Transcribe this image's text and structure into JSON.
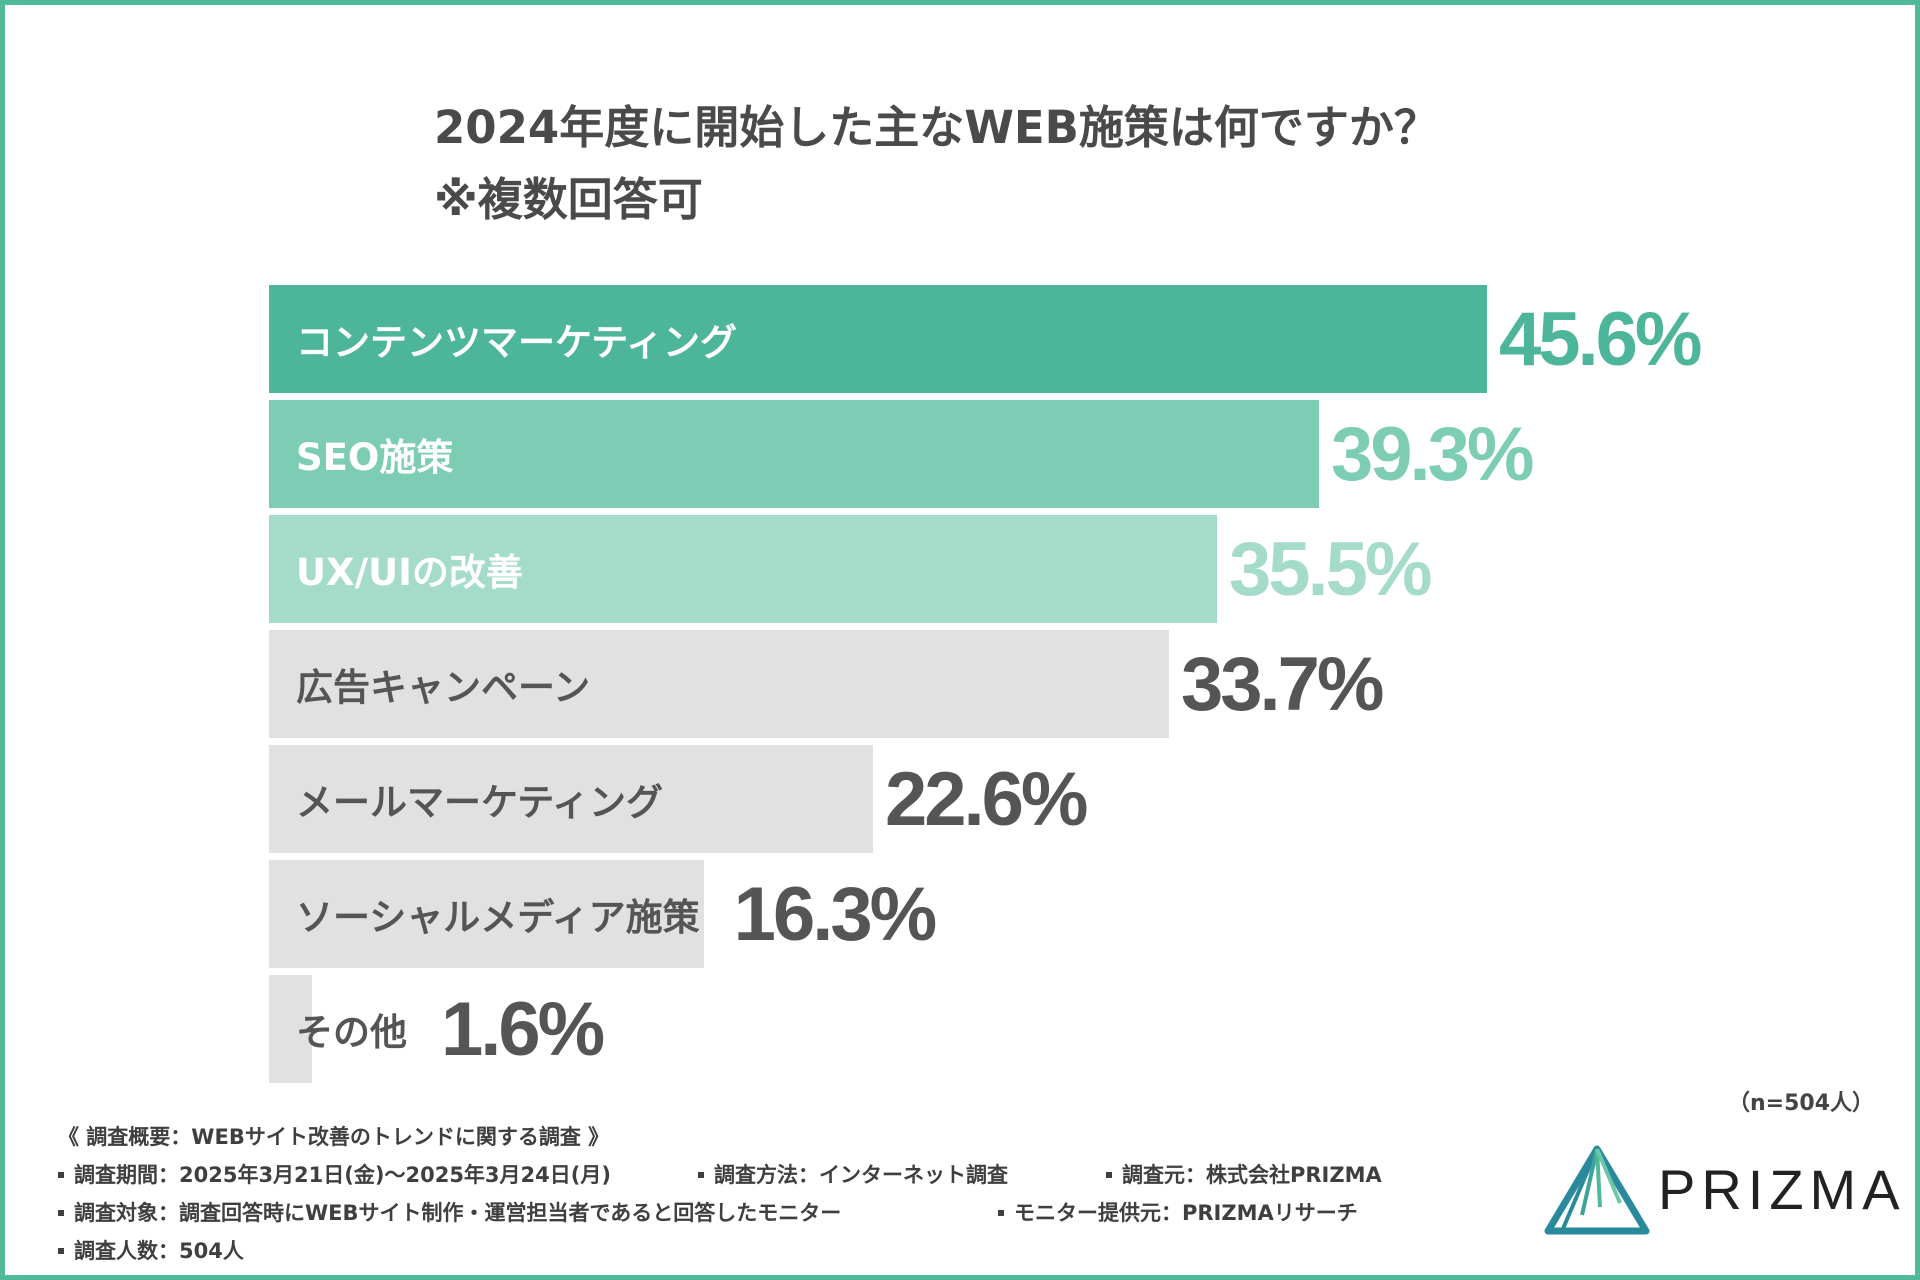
{
  "title": {
    "line1": "2024年度に開始した主なWEB施策は何ですか？",
    "line2": "※複数回答可"
  },
  "chart_data": {
    "type": "bar",
    "orientation": "horizontal",
    "categories": [
      "コンテンツマーケティング",
      "SEO施策",
      "UX/UIの改善",
      "広告キャンペーン",
      "メールマーケティング",
      "ソーシャルメディア施策",
      "その他"
    ],
    "values": [
      45.6,
      39.3,
      35.5,
      33.7,
      22.6,
      16.3,
      1.6
    ],
    "value_labels": [
      "45.6%",
      "39.3%",
      "35.5%",
      "33.7%",
      "22.6%",
      "16.3%",
      "1.6%"
    ],
    "unit": "%",
    "xlim": [
      0,
      45.6
    ],
    "colors": {
      "bars": [
        "#4db59a",
        "#7dcdb5",
        "#a5dbc9",
        "#e1e1e1",
        "#e1e1e1",
        "#e1e1e1",
        "#e1e1e1"
      ],
      "labels": [
        "#ffffff",
        "#ffffff",
        "#ffffff",
        "#555555",
        "#555555",
        "#555555",
        "#555555"
      ],
      "values": [
        "#4db59a",
        "#7dcdb5",
        "#a5dbc9",
        "#555555",
        "#555555",
        "#555555",
        "#555555"
      ]
    },
    "grid": false,
    "legend": "none"
  },
  "sample_size": "（n=504人）",
  "survey": {
    "heading": "《 調査概要：WEBサイト改善のトレンドに関する調査 》",
    "rows": [
      [
        "調査期間：2025年3月21日(金)〜2025年3月24日(月)",
        "調査方法：インターネット調査",
        "調査元：株式会社PRIZMA"
      ],
      [
        "調査対象：調査回答時にWEBサイト制作・運営担当者であると回答したモニター",
        "モニター提供元：PRIZMAリサーチ"
      ],
      [
        "調査人数：504人"
      ]
    ]
  },
  "logo": {
    "text": "PRIZMA",
    "icon": "prism-triangle-icon",
    "colors": [
      "#2a8a9c",
      "#4fb99a"
    ]
  },
  "frame_color": "#4fb99a"
}
